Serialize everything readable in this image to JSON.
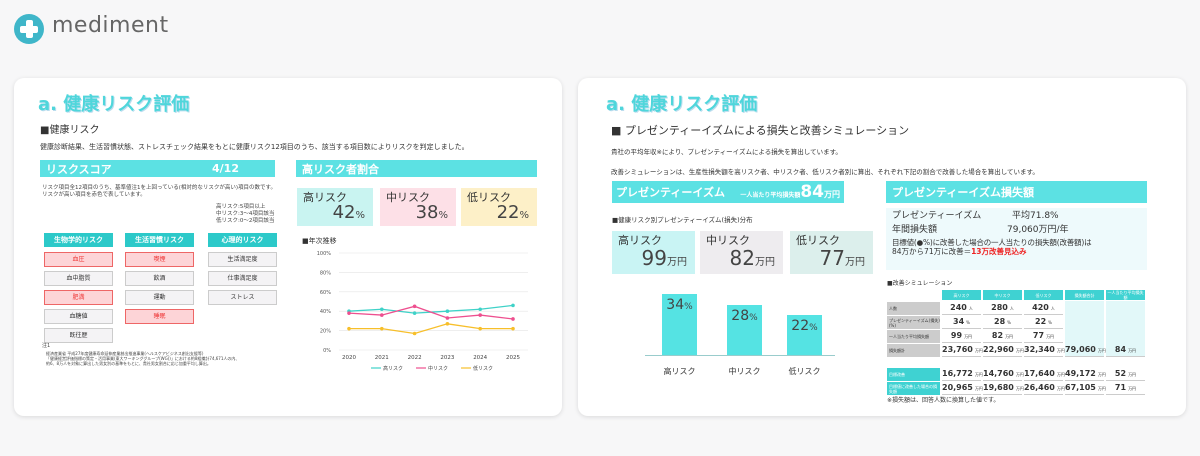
{
  "app": {
    "brand": "mediment"
  },
  "left": {
    "title": "a. 健康リスク評価",
    "section": "■健康リスク",
    "description": "健康診断結果、生活習慣状態、ストレスチェック結果をもとに健康リスク12項目のうち、該当する項目数によりリスクを判定しました。",
    "score_label": "リスクスコア",
    "score_value": "4/12",
    "ratio_label": "高リスク者割合",
    "explain1": "リスク項目全12項目のうち、基準値注1を上回っている(相対的なリスクが高い)項目の数です。",
    "explain2": "リスクが高い項目を赤色で表しています。",
    "legend": [
      "高リスク:5項目以上",
      "中リスク:3～4項目該当",
      "低リスク:0～2項目該当"
    ],
    "ratios": [
      {
        "label": "高リスク",
        "value": "42",
        "unit": "%"
      },
      {
        "label": "中リスク",
        "value": "38",
        "unit": "%"
      },
      {
        "label": "低リスク",
        "value": "22",
        "unit": "%"
      }
    ],
    "categories": [
      {
        "label": "生物学的リスク",
        "items": [
          {
            "t": "血圧",
            "hi": true
          },
          {
            "t": "血中脂質",
            "hi": false
          },
          {
            "t": "肥満",
            "hi": true
          },
          {
            "t": "血糖値",
            "hi": false
          },
          {
            "t": "既往歴",
            "hi": false
          }
        ]
      },
      {
        "label": "生活習慣リスク",
        "items": [
          {
            "t": "喫煙",
            "hi": true
          },
          {
            "t": "飲酒",
            "hi": false
          },
          {
            "t": "運動",
            "hi": false
          },
          {
            "t": "睡眠",
            "hi": true
          }
        ]
      },
      {
        "label": "心理的リスク",
        "items": [
          {
            "t": "生活満足度",
            "hi": false
          },
          {
            "t": "仕事満足度",
            "hi": false
          },
          {
            "t": "ストレス",
            "hi": false
          }
        ]
      }
    ],
    "note_title": "注1",
    "notes": [
      "経済産業省 平成27年度健康寿命延伸産業創出推進事業(ヘルスケアビジネス創出支援等)",
      "「健康経営評価指標の策定・活用事業(東大ワーキンググループ(WG))」における約8組織計74,671人の内、",
      "約6、8万人を対象に算出した男女別の基準をもとに、貴社男女割合に応じ加重平均し算出。"
    ],
    "chart_title": "■年次推移"
  },
  "chart_data": {
    "type": "line",
    "x": [
      "2020",
      "2021",
      "2022",
      "2023",
      "2024",
      "2025"
    ],
    "ylim": [
      0,
      100
    ],
    "yticks": [
      "0%",
      "20%",
      "40%",
      "60%",
      "80%",
      "100%"
    ],
    "grid": true,
    "legend_position": "bottom",
    "series": [
      {
        "name": "高リスク",
        "color": "#3fd2c8",
        "values": [
          40,
          42,
          38,
          40,
          42,
          46
        ]
      },
      {
        "name": "中リスク",
        "color": "#ee4f8f",
        "values": [
          38,
          36,
          45,
          33,
          36,
          32
        ]
      },
      {
        "name": "低リスク",
        "color": "#f7bf2a",
        "values": [
          22,
          22,
          17,
          27,
          22,
          22
        ]
      }
    ]
  },
  "right": {
    "title": "a. 健康リスク評価",
    "section": "■ プレゼンティーイズムによる損失と改善シミュレーション",
    "desc1": "貴社の平均年収※により、プレゼンティーイズムによる損失を算出しています。",
    "desc2": "改善シミュレーションは、生産性損失額を高リスク者、中リスク者、低リスク者別に算出、それぞれ下記の割合で改善した場合を算出しています。",
    "pres_label": "プレゼンティーイズム",
    "avg_loss_label": "一人当たり平均損失額",
    "avg_loss_value": "84",
    "avg_loss_unit": "万円",
    "loss_label": "プレゼンティーイズム損失額",
    "dist_title": "■健康リスク別プレゼンティーイズム(損失)分布",
    "dist": [
      {
        "label": "高リスク",
        "value": "99",
        "unit": "万円"
      },
      {
        "label": "中リスク",
        "value": "82",
        "unit": "万円"
      },
      {
        "label": "低リスク",
        "value": "77",
        "unit": "万円"
      }
    ],
    "info": {
      "pres_label": "プレゼンティーイズム",
      "pres_value": "平均71.8%",
      "annual_label": "年間損失額",
      "annual_value": "79,060万円/年",
      "target_text": "目標値(●%)に改善した場合の一人当たりの損失額(改善額)は",
      "improve_text": "84万から71万に改善＝",
      "improve_highlight": "13万改善見込み"
    },
    "bars": [
      {
        "label": "高リスク",
        "value": 34
      },
      {
        "label": "中リスク",
        "value": 28
      },
      {
        "label": "低リスク",
        "value": 22
      }
    ],
    "sim_title": "■改善シミュレーション",
    "sim_headers": [
      "高リスク",
      "中リスク",
      "低リスク",
      "損失額合計",
      "一人当たり平均損失額"
    ],
    "sim_rows": [
      {
        "label": "人数",
        "cells": [
          [
            "240",
            "人"
          ],
          [
            "280",
            "人"
          ],
          [
            "420",
            "人"
          ]
        ]
      },
      {
        "label": "プレゼンティーイズム(損失)(%)",
        "cells": [
          [
            "34",
            "%"
          ],
          [
            "28",
            "%"
          ],
          [
            "22",
            "%"
          ]
        ]
      },
      {
        "label": "一人当たり平均損失額",
        "cells": [
          [
            "99",
            "万円"
          ],
          [
            "82",
            "万円"
          ],
          [
            "77",
            "万円"
          ]
        ]
      },
      {
        "label": "損失額計",
        "cells": [
          [
            "23,760",
            "万円"
          ],
          [
            "22,960",
            "万円"
          ],
          [
            "32,340",
            "万円"
          ],
          [
            "79,060",
            "万円"
          ],
          [
            "84",
            "万円"
          ]
        ]
      }
    ],
    "sim_rows2": [
      {
        "label": "目標改善",
        "cells": [
          [
            "16,772",
            "万円"
          ],
          [
            "14,760",
            "万円"
          ],
          [
            "17,640",
            "万円"
          ],
          [
            "49,172",
            "万円"
          ],
          [
            "52",
            "万円"
          ]
        ]
      },
      {
        "label": "目標値に改善した場合の損失額",
        "cells": [
          [
            "20,965",
            "万円"
          ],
          [
            "19,680",
            "万円"
          ],
          [
            "26,460",
            "万円"
          ],
          [
            "67,105",
            "万円"
          ],
          [
            "71",
            "万円"
          ]
        ]
      }
    ],
    "footnote": "※損失額は、回答人数に換算した値です。"
  }
}
